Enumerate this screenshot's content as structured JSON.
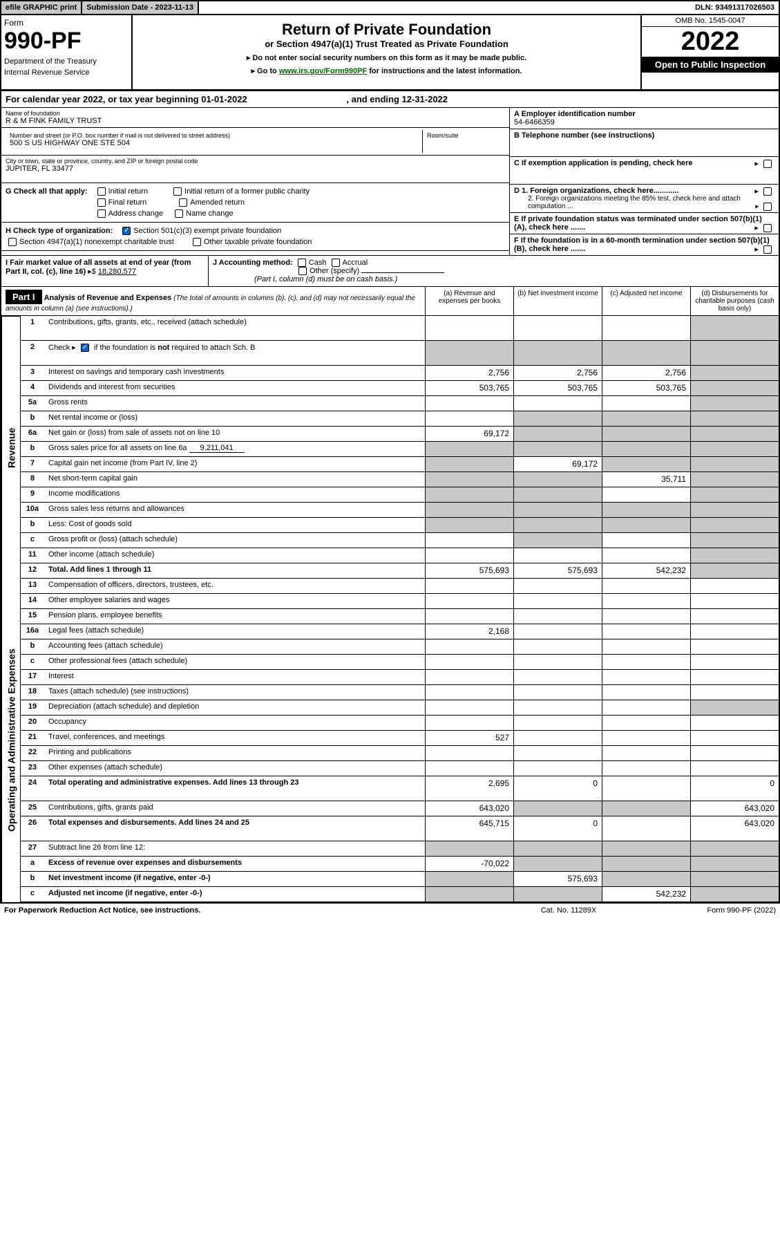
{
  "topbar": {
    "efile": "efile GRAPHIC print",
    "subdate_label": "Submission Date - ",
    "subdate": "2023-11-13",
    "dln_label": "DLN: ",
    "dln": "93491317026503"
  },
  "header": {
    "form": "Form",
    "formno": "990-PF",
    "dept": "Department of the Treasury",
    "irs": "Internal Revenue Service",
    "title": "Return of Private Foundation",
    "subtitle": "or Section 4947(a)(1) Trust Treated as Private Foundation",
    "instr1": "▸ Do not enter social security numbers on this form as it may be made public.",
    "instr2_pre": "▸ Go to ",
    "instr2_link": "www.irs.gov/Form990PF",
    "instr2_post": " for instructions and the latest information.",
    "omb": "OMB No. 1545-0047",
    "year": "2022",
    "open": "Open to Public Inspection"
  },
  "calyear": {
    "text": "For calendar year 2022, or tax year beginning 01-01-2022",
    "ending": ", and ending 12-31-2022"
  },
  "entity": {
    "name_label": "Name of foundation",
    "name": "R & M FINK FAMILY TRUST",
    "addr_label": "Number and street (or P.O. box number if mail is not delivered to street address)",
    "addr": "500 S US HIGHWAY ONE STE 504",
    "room_label": "Room/suite",
    "city_label": "City or town, state or province, country, and ZIP or foreign postal code",
    "city": "JUPITER, FL  33477",
    "ein_label": "A Employer identification number",
    "ein": "54-6466359",
    "tel_label": "B Telephone number (see instructions)",
    "c_label": "C If exemption application is pending, check here",
    "d1": "D 1. Foreign organizations, check here............",
    "d2": "2. Foreign organizations meeting the 85% test, check here and attach computation ...",
    "e": "E  If private foundation status was terminated under section 507(b)(1)(A), check here .......",
    "f": "F  If the foundation is in a 60-month termination under section 507(b)(1)(B), check here .......",
    "g_label": "G Check all that apply:",
    "g_initial": "Initial return",
    "g_initial_former": "Initial return of a former public charity",
    "g_final": "Final return",
    "g_amended": "Amended return",
    "g_addr": "Address change",
    "g_name": "Name change",
    "h_label": "H Check type of organization:",
    "h_501c3": "Section 501(c)(3) exempt private foundation",
    "h_4947": "Section 4947(a)(1) nonexempt charitable trust",
    "h_other": "Other taxable private foundation",
    "i_label": "I Fair market value of all assets at end of year (from Part II, col. (c), line 16)",
    "i_value": "18,280,577",
    "j_label": "J Accounting method:",
    "j_cash": "Cash",
    "j_accrual": "Accrual",
    "j_other": "Other (specify)",
    "j_note": "(Part I, column (d) must be on cash basis.)"
  },
  "part1": {
    "label": "Part I",
    "title": "Analysis of Revenue and Expenses",
    "title_note": " (The total of amounts in columns (b), (c), and (d) may not necessarily equal the amounts in column (a) (see instructions).)",
    "col_a": "(a)   Revenue and expenses per books",
    "col_b": "(b)   Net investment income",
    "col_c": "(c)   Adjusted net income",
    "col_d": "(d)   Disbursements for charitable purposes (cash basis only)"
  },
  "side": {
    "revenue": "Revenue",
    "expenses": "Operating and Administrative Expenses"
  },
  "lines": [
    {
      "no": "1",
      "desc": "Contributions, gifts, grants, etc., received (attach schedule)",
      "a": "",
      "b": "",
      "c": "",
      "d": "",
      "shade_d": true,
      "tall": true
    },
    {
      "no": "2",
      "desc": "Check ▸ ☑ if the foundation is not required to attach Sch. B",
      "a": "",
      "b": "",
      "c": "",
      "d": "",
      "shade_all": true,
      "tall": true,
      "bold": false,
      "checkbox": true
    },
    {
      "no": "3",
      "desc": "Interest on savings and temporary cash investments",
      "a": "2,756",
      "b": "2,756",
      "c": "2,756",
      "d": "",
      "shade_d": true
    },
    {
      "no": "4",
      "desc": "Dividends and interest from securities",
      "a": "503,765",
      "b": "503,765",
      "c": "503,765",
      "d": "",
      "shade_d": true
    },
    {
      "no": "5a",
      "desc": "Gross rents",
      "a": "",
      "b": "",
      "c": "",
      "d": "",
      "shade_d": true
    },
    {
      "no": "b",
      "desc": "Net rental income or (loss)",
      "a": "",
      "b": "",
      "c": "",
      "d": "",
      "shade_bcd": true
    },
    {
      "no": "6a",
      "desc": "Net gain or (loss) from sale of assets not on line 10",
      "a": "69,172",
      "b": "",
      "c": "",
      "d": "",
      "shade_bcd": true
    },
    {
      "no": "b",
      "desc": "Gross sales price for all assets on line 6a",
      "inline": "9,211,041",
      "a": "",
      "b": "",
      "c": "",
      "d": "",
      "shade_all": true
    },
    {
      "no": "7",
      "desc": "Capital gain net income (from Part IV, line 2)",
      "a": "",
      "b": "69,172",
      "c": "",
      "d": "",
      "shade_a": true,
      "shade_cd": true
    },
    {
      "no": "8",
      "desc": "Net short-term capital gain",
      "a": "",
      "b": "",
      "c": "35,711",
      "d": "",
      "shade_ab": true,
      "shade_d": true
    },
    {
      "no": "9",
      "desc": "Income modifications",
      "a": "",
      "b": "",
      "c": "",
      "d": "",
      "shade_ab": true,
      "shade_d": true
    },
    {
      "no": "10a",
      "desc": "Gross sales less returns and allowances",
      "a": "",
      "b": "",
      "c": "",
      "d": "",
      "shade_all": true
    },
    {
      "no": "b",
      "desc": "Less: Cost of goods sold",
      "a": "",
      "b": "",
      "c": "",
      "d": "",
      "shade_all": true
    },
    {
      "no": "c",
      "desc": "Gross profit or (loss) (attach schedule)",
      "a": "",
      "b": "",
      "c": "",
      "d": "",
      "shade_b": true,
      "shade_d": true
    },
    {
      "no": "11",
      "desc": "Other income (attach schedule)",
      "a": "",
      "b": "",
      "c": "",
      "d": "",
      "shade_d": true
    },
    {
      "no": "12",
      "desc": "Total. Add lines 1 through 11",
      "a": "575,693",
      "b": "575,693",
      "c": "542,232",
      "d": "",
      "bold": true,
      "shade_d": true
    }
  ],
  "exp_lines": [
    {
      "no": "13",
      "desc": "Compensation of officers, directors, trustees, etc.",
      "a": "",
      "b": "",
      "c": "",
      "d": ""
    },
    {
      "no": "14",
      "desc": "Other employee salaries and wages",
      "a": "",
      "b": "",
      "c": "",
      "d": ""
    },
    {
      "no": "15",
      "desc": "Pension plans, employee benefits",
      "a": "",
      "b": "",
      "c": "",
      "d": ""
    },
    {
      "no": "16a",
      "desc": "Legal fees (attach schedule)",
      "a": "2,168",
      "b": "",
      "c": "",
      "d": ""
    },
    {
      "no": "b",
      "desc": "Accounting fees (attach schedule)",
      "a": "",
      "b": "",
      "c": "",
      "d": ""
    },
    {
      "no": "c",
      "desc": "Other professional fees (attach schedule)",
      "a": "",
      "b": "",
      "c": "",
      "d": ""
    },
    {
      "no": "17",
      "desc": "Interest",
      "a": "",
      "b": "",
      "c": "",
      "d": ""
    },
    {
      "no": "18",
      "desc": "Taxes (attach schedule) (see instructions)",
      "a": "",
      "b": "",
      "c": "",
      "d": ""
    },
    {
      "no": "19",
      "desc": "Depreciation (attach schedule) and depletion",
      "a": "",
      "b": "",
      "c": "",
      "d": "",
      "shade_d": true
    },
    {
      "no": "20",
      "desc": "Occupancy",
      "a": "",
      "b": "",
      "c": "",
      "d": ""
    },
    {
      "no": "21",
      "desc": "Travel, conferences, and meetings",
      "a": "527",
      "b": "",
      "c": "",
      "d": ""
    },
    {
      "no": "22",
      "desc": "Printing and publications",
      "a": "",
      "b": "",
      "c": "",
      "d": ""
    },
    {
      "no": "23",
      "desc": "Other expenses (attach schedule)",
      "a": "",
      "b": "",
      "c": "",
      "d": ""
    },
    {
      "no": "24",
      "desc": "Total operating and administrative expenses. Add lines 13 through 23",
      "a": "2,695",
      "b": "0",
      "c": "",
      "d": "0",
      "bold": true,
      "tall": true
    },
    {
      "no": "25",
      "desc": "Contributions, gifts, grants paid",
      "a": "643,020",
      "b": "",
      "c": "",
      "d": "643,020",
      "shade_bc": true
    },
    {
      "no": "26",
      "desc": "Total expenses and disbursements. Add lines 24 and 25",
      "a": "645,715",
      "b": "0",
      "c": "",
      "d": "643,020",
      "bold": true,
      "tall": true
    }
  ],
  "bottom_lines": [
    {
      "no": "27",
      "desc": "Subtract line 26 from line 12:",
      "a": "",
      "b": "",
      "c": "",
      "d": "",
      "shade_all": true
    },
    {
      "no": "a",
      "desc": "Excess of revenue over expenses and disbursements",
      "a": "-70,022",
      "b": "",
      "c": "",
      "d": "",
      "bold": true,
      "shade_bcd": true
    },
    {
      "no": "b",
      "desc": "Net investment income (if negative, enter -0-)",
      "a": "",
      "b": "575,693",
      "c": "",
      "d": "",
      "bold": true,
      "shade_a": true,
      "shade_cd": true
    },
    {
      "no": "c",
      "desc": "Adjusted net income (if negative, enter -0-)",
      "a": "",
      "b": "",
      "c": "542,232",
      "d": "",
      "bold": true,
      "shade_ab": true,
      "shade_d": true
    }
  ],
  "footer": {
    "left": "For Paperwork Reduction Act Notice, see instructions.",
    "center": "Cat. No. 11289X",
    "right": "Form 990-PF (2022)"
  }
}
